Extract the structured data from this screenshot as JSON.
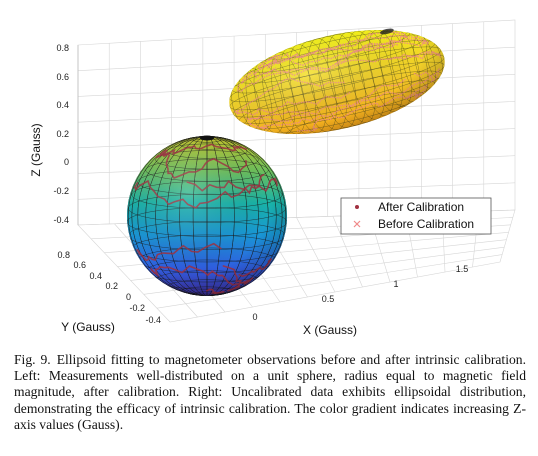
{
  "chart_data": {
    "type": "scatter",
    "projection": "3d",
    "title": "",
    "xlabel": "X (Gauss)",
    "ylabel": "Y (Gauss)",
    "zlabel": "Z (Gauss)",
    "x_ticks": [
      "0",
      "0.5",
      "1",
      "1.5"
    ],
    "y_ticks": [
      "0.8",
      "0.6",
      "0.4",
      "0.2",
      "0",
      "-0.2",
      "-0.4"
    ],
    "z_ticks": [
      "0.8",
      "0.6",
      "0.4",
      "0.2",
      "0",
      "-0.2",
      "-0.4"
    ],
    "xlim": [
      -0.2,
      1.9
    ],
    "ylim": [
      -0.5,
      0.9
    ],
    "zlim": [
      -0.5,
      0.9
    ],
    "grid": true,
    "legend_position": "right",
    "colormap": "parula (increasing Z)",
    "series": [
      {
        "name": "After Calibration",
        "marker": "dot",
        "color": "#a03040",
        "fit": {
          "shape": "sphere",
          "center": [
            0,
            0,
            0
          ],
          "radii": [
            0.45,
            0.45,
            0.45
          ]
        }
      },
      {
        "name": "Before Calibration",
        "marker": "x",
        "color": "#f08a8a",
        "fit": {
          "shape": "ellipsoid",
          "center": [
            1.3,
            0.45,
            0.5
          ],
          "radii": [
            0.6,
            0.32,
            0.25
          ]
        }
      }
    ]
  },
  "caption": {
    "label": "Fig. 9.",
    "text": "Ellipsoid fitting to magnetometer observations before and after intrinsic calibration. Left: Measurements well-distributed on a unit sphere, radius equal to magnetic field magnitude, after calibration. Right: Uncalibrated data exhibits ellipsoidal distribution, demonstrating the efficacy of intrinsic calibration. The color gradient indicates increasing Z-axis values (Gauss)."
  }
}
